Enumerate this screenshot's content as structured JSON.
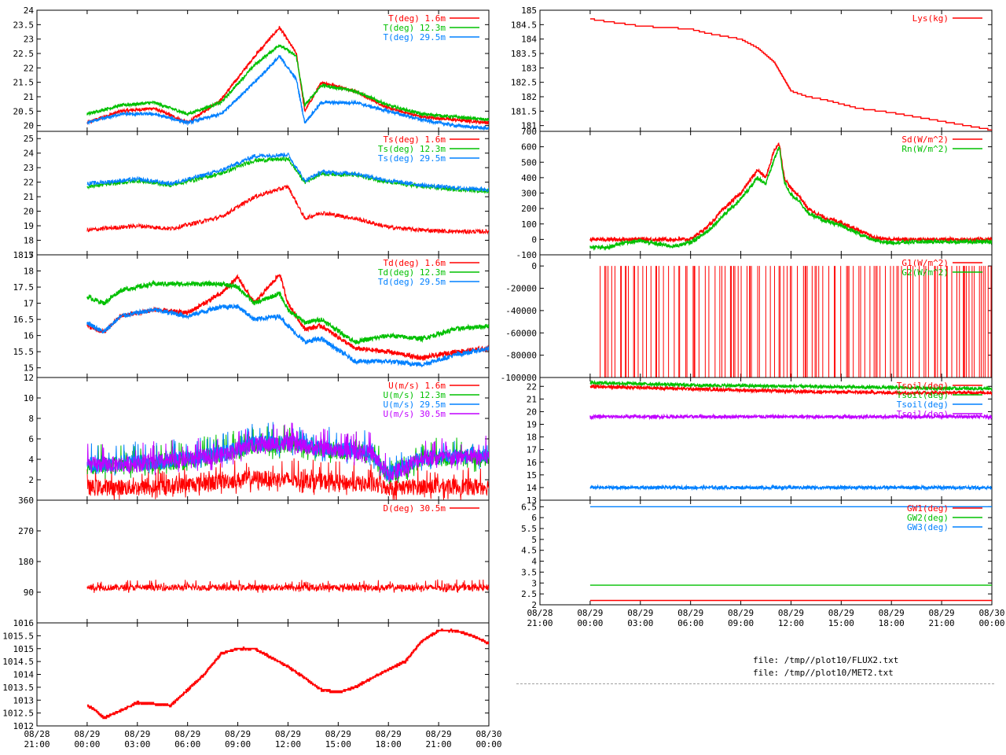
{
  "colors": {
    "red": "#ff0000",
    "green": "#00c000",
    "blue": "#0080ff",
    "purple": "#c000ff",
    "frame": "#000000"
  },
  "x_axis": {
    "tick_labels": [
      {
        "date": "08/28",
        "time": "21:00"
      },
      {
        "date": "08/29",
        "time": "00:00"
      },
      {
        "date": "08/29",
        "time": "03:00"
      },
      {
        "date": "08/29",
        "time": "06:00"
      },
      {
        "date": "08/29",
        "time": "09:00"
      },
      {
        "date": "08/29",
        "time": "12:00"
      },
      {
        "date": "08/29",
        "time": "15:00"
      },
      {
        "date": "08/29",
        "time": "18:00"
      },
      {
        "date": "08/29",
        "time": "21:00"
      },
      {
        "date": "08/30",
        "time": "00:00"
      }
    ],
    "hour_range": [
      -3,
      24
    ]
  },
  "files": [
    "file: /tmp//plot10/FLUX2.txt",
    "file: /tmp//plot10/MET2.txt"
  ],
  "chart_data": [
    {
      "id": "air-temperature",
      "type": "line",
      "ylim": [
        19.8,
        24
      ],
      "yticks": [
        "24",
        "23.5",
        "23",
        "22.5",
        "22",
        "21.5",
        "21",
        "20.5",
        "20"
      ],
      "ytick_values": [
        24,
        23.5,
        23,
        22.5,
        22,
        21.5,
        21,
        20.5,
        20
      ],
      "legend": "top-right",
      "series": [
        {
          "name": "T(deg)  1.6m",
          "color": "red",
          "x": [
            0,
            2,
            4,
            6,
            8,
            10,
            11.5,
            12.5,
            13,
            14,
            16,
            18,
            20,
            22,
            24
          ],
          "y": [
            20.1,
            20.5,
            20.6,
            20.1,
            20.9,
            22.4,
            23.4,
            22.5,
            20.5,
            21.5,
            21.2,
            20.6,
            20.3,
            20.2,
            20.1
          ]
        },
        {
          "name": "T(deg) 12.3m",
          "color": "green",
          "x": [
            0,
            2,
            4,
            6,
            8,
            10,
            11.5,
            12.5,
            13,
            14,
            16,
            18,
            20,
            22,
            24
          ],
          "y": [
            20.4,
            20.7,
            20.8,
            20.4,
            20.8,
            22.1,
            22.8,
            22.4,
            20.7,
            21.4,
            21.2,
            20.7,
            20.4,
            20.3,
            20.2
          ]
        },
        {
          "name": "T(deg) 29.5m",
          "color": "blue",
          "x": [
            0,
            2,
            4,
            6,
            8,
            10,
            11.5,
            12.5,
            13,
            14,
            16,
            18,
            20,
            22,
            24
          ],
          "y": [
            20.1,
            20.4,
            20.4,
            20.1,
            20.4,
            21.5,
            22.4,
            21.6,
            20.1,
            20.8,
            20.8,
            20.5,
            20.2,
            20.0,
            19.9
          ]
        }
      ]
    },
    {
      "id": "surface-temperature",
      "type": "line",
      "ylim": [
        17,
        25.5
      ],
      "yticks": [
        "25",
        "24",
        "23",
        "22",
        "21",
        "20",
        "19",
        "18",
        "17"
      ],
      "ytick_values": [
        25,
        24,
        23,
        22,
        21,
        20,
        19,
        18,
        17
      ],
      "legend": "top-right",
      "series": [
        {
          "name": "Ts(deg)  1.6m",
          "color": "red",
          "x": [
            0,
            3,
            5,
            8,
            10,
            12,
            13,
            14,
            16,
            18,
            20,
            22,
            24
          ],
          "y": [
            18.7,
            19.0,
            18.8,
            19.6,
            21.0,
            21.7,
            19.5,
            19.9,
            19.5,
            18.9,
            18.7,
            18.6,
            18.6
          ]
        },
        {
          "name": "Ts(deg) 12.3m",
          "color": "green",
          "x": [
            0,
            3,
            5,
            8,
            10,
            12,
            13,
            14,
            16,
            18,
            20,
            22,
            24
          ],
          "y": [
            21.7,
            22.1,
            21.8,
            22.6,
            23.5,
            23.6,
            22.0,
            22.6,
            22.5,
            22.0,
            21.7,
            21.5,
            21.4
          ]
        },
        {
          "name": "Ts(deg) 29.5m",
          "color": "blue",
          "x": [
            0,
            3,
            5,
            8,
            10,
            12,
            13,
            14,
            16,
            18,
            20,
            22,
            24
          ],
          "y": [
            21.9,
            22.2,
            21.9,
            22.8,
            23.8,
            23.9,
            22.1,
            22.7,
            22.6,
            22.1,
            21.8,
            21.6,
            21.5
          ]
        }
      ]
    },
    {
      "id": "dewpoint",
      "type": "line",
      "ylim": [
        14.7,
        18.5
      ],
      "yticks": [
        "18.5",
        "18",
        "17.5",
        "17",
        "16.5",
        "16",
        "15.5",
        "15"
      ],
      "ytick_values": [
        18.5,
        18,
        17.5,
        17,
        16.5,
        16,
        15.5,
        15
      ],
      "legend": "top-right",
      "series": [
        {
          "name": "Td(deg)  1.6m",
          "color": "red",
          "x": [
            0,
            1,
            2,
            4,
            6,
            8,
            9,
            10,
            11.5,
            12,
            13,
            14,
            16,
            18,
            20,
            22,
            24
          ],
          "y": [
            16.3,
            16.1,
            16.6,
            16.8,
            16.7,
            17.3,
            17.8,
            17.0,
            17.9,
            17.0,
            16.2,
            16.3,
            15.6,
            15.5,
            15.3,
            15.5,
            15.6
          ]
        },
        {
          "name": "Td(deg) 12.3m",
          "color": "green",
          "x": [
            0,
            1,
            2,
            4,
            6,
            8,
            9,
            10,
            11.5,
            12,
            13,
            14,
            16,
            18,
            20,
            22,
            24
          ],
          "y": [
            17.2,
            17.0,
            17.4,
            17.6,
            17.6,
            17.6,
            17.5,
            17.0,
            17.3,
            16.8,
            16.4,
            16.5,
            15.8,
            16.0,
            15.9,
            16.2,
            16.3
          ]
        },
        {
          "name": "Td(deg) 29.5m",
          "color": "blue",
          "x": [
            0,
            1,
            2,
            4,
            6,
            8,
            9,
            10,
            11.5,
            12,
            13,
            14,
            16,
            18,
            20,
            22,
            24
          ],
          "y": [
            16.4,
            16.1,
            16.6,
            16.8,
            16.6,
            16.9,
            16.9,
            16.5,
            16.6,
            16.3,
            15.8,
            15.9,
            15.2,
            15.2,
            15.1,
            15.4,
            15.6
          ]
        }
      ]
    },
    {
      "id": "wind-speed",
      "type": "line",
      "ylim": [
        0,
        12
      ],
      "yticks": [
        "12",
        "10",
        "8",
        "6",
        "4",
        "2"
      ],
      "ytick_values": [
        12,
        10,
        8,
        6,
        4,
        2
      ],
      "legend": "top-right",
      "series": [
        {
          "name": "U(m/s)  1.6m",
          "color": "red",
          "x": [
            0,
            4,
            8,
            10,
            12,
            14,
            17,
            18,
            20,
            24
          ],
          "y": [
            0.9,
            0.9,
            1.5,
            1.8,
            1.7,
            1.5,
            1.2,
            0.9,
            1.0,
            1.0
          ]
        },
        {
          "name": "U(m/s) 12.3m",
          "color": "green",
          "x": [
            0,
            4,
            8,
            10,
            12,
            14,
            17,
            18,
            20,
            24
          ],
          "y": [
            3.0,
            3.2,
            4.0,
            5.0,
            5.1,
            4.6,
            4.2,
            2.0,
            3.7,
            3.8
          ]
        },
        {
          "name": "U(m/s) 29.5m",
          "color": "blue",
          "x": [
            0,
            4,
            8,
            10,
            12,
            14,
            17,
            18,
            20,
            24
          ],
          "y": [
            3.2,
            3.4,
            4.2,
            5.2,
            5.3,
            4.8,
            4.4,
            2.2,
            3.9,
            4.0
          ]
        },
        {
          "name": "U(m/s) 30.5m",
          "color": "purple",
          "x": [
            0,
            4,
            8,
            10,
            12,
            14,
            17,
            18,
            20,
            24
          ],
          "y": [
            3.1,
            3.3,
            4.1,
            5.1,
            5.2,
            4.7,
            4.3,
            2.1,
            3.8,
            3.9
          ]
        }
      ]
    },
    {
      "id": "wind-direction",
      "type": "line",
      "ylim": [
        0,
        360
      ],
      "yticks": [
        "360",
        "270",
        "180",
        "90"
      ],
      "ytick_values": [
        360,
        270,
        180,
        90
      ],
      "legend": "top-right",
      "series": [
        {
          "name": "D(deg)  30.5m",
          "color": "red",
          "x": [
            0,
            6,
            12,
            18,
            24
          ],
          "y": [
            100,
            100,
            100,
            100,
            100
          ]
        }
      ]
    },
    {
      "id": "pressure",
      "type": "line",
      "ylim": [
        1012,
        1016
      ],
      "yticks": [
        "1016",
        "1015.5",
        "1015",
        "1014.5",
        "1014",
        "1013.5",
        "1013",
        "1012.5",
        "1012"
      ],
      "ytick_values": [
        1016,
        1015.5,
        1015,
        1014.5,
        1014,
        1013.5,
        1013,
        1012.5,
        1012
      ],
      "legend": "none",
      "series": [
        {
          "name": "",
          "color": "red",
          "x": [
            0,
            0.5,
            1,
            2,
            3,
            5,
            7,
            8,
            9,
            10,
            12,
            14,
            15,
            16,
            18,
            19,
            20,
            21,
            22,
            23,
            24
          ],
          "y": [
            1012.8,
            1012.6,
            1012.3,
            1012.6,
            1012.9,
            1012.8,
            1014.0,
            1014.8,
            1015.0,
            1015.0,
            1014.3,
            1013.4,
            1013.3,
            1013.5,
            1014.2,
            1014.5,
            1015.3,
            1015.7,
            1015.7,
            1015.5,
            1015.2
          ]
        }
      ]
    },
    {
      "id": "lysimeter",
      "type": "line",
      "ylim": [
        180.8,
        185
      ],
      "yticks": [
        "185",
        "184.5",
        "184",
        "183.5",
        "183",
        "182.5",
        "182",
        "181.5",
        "181"
      ],
      "ytick_values": [
        185,
        184.5,
        184,
        183.5,
        183,
        182.5,
        182,
        181.5,
        181
      ],
      "legend": "top-right",
      "series": [
        {
          "name": "Lys(kg)",
          "color": "red",
          "x": [
            0,
            0.5,
            3,
            6,
            7,
            9,
            10,
            11,
            12,
            13,
            14,
            15,
            16,
            18,
            20,
            22,
            24
          ],
          "y": [
            184.7,
            184.65,
            184.45,
            184.35,
            184.2,
            184.0,
            183.7,
            183.2,
            182.2,
            182.0,
            181.9,
            181.75,
            181.6,
            181.45,
            181.25,
            181.05,
            180.85
          ]
        }
      ]
    },
    {
      "id": "radiation",
      "type": "line",
      "ylim": [
        -100,
        700
      ],
      "yticks": [
        "700",
        "600",
        "500",
        "400",
        "300",
        "200",
        "100",
        "0",
        "-100"
      ],
      "ytick_values": [
        700,
        600,
        500,
        400,
        300,
        200,
        100,
        0,
        -100
      ],
      "legend": "top-right",
      "series": [
        {
          "name": "Sd(W/m^2)",
          "color": "red",
          "x": [
            0,
            5,
            6,
            7,
            8,
            9,
            10,
            10.5,
            11,
            11.3,
            11.6,
            12,
            12.5,
            13,
            14,
            15,
            16,
            17,
            18,
            24
          ],
          "y": [
            0,
            0,
            0,
            80,
            200,
            300,
            450,
            400,
            580,
            620,
            400,
            330,
            280,
            200,
            140,
            110,
            60,
            10,
            0,
            0
          ]
        },
        {
          "name": "Rn(W/m^2)",
          "color": "green",
          "x": [
            0,
            1,
            2,
            3,
            4,
            5,
            6,
            7,
            8,
            9,
            10,
            10.5,
            11,
            11.3,
            11.6,
            12,
            12.5,
            13,
            14,
            15,
            16,
            17,
            18,
            20,
            22,
            24
          ],
          "y": [
            -50,
            -55,
            -20,
            -10,
            -30,
            -45,
            -20,
            50,
            160,
            260,
            400,
            360,
            520,
            600,
            370,
            290,
            250,
            170,
            120,
            90,
            40,
            -10,
            -20,
            -15,
            -15,
            -15
          ]
        }
      ]
    },
    {
      "id": "soil-heat-flux",
      "type": "bar",
      "ylim": [
        -100000,
        10000
      ],
      "yticks": [
        "0",
        "-20000",
        "-40000",
        "-60000",
        "-80000",
        "-100000"
      ],
      "ytick_values": [
        0,
        -20000,
        -40000,
        -60000,
        -80000,
        -100000
      ],
      "legend": "top-right",
      "series": [
        {
          "name": "G1(W/m^2)",
          "color": "red",
          "value": -100000
        },
        {
          "name": "G2(W/m^2)",
          "color": "green",
          "value": 0
        }
      ]
    },
    {
      "id": "soil-temperature",
      "type": "line",
      "ylim": [
        13,
        22.7
      ],
      "yticks": [
        "22",
        "21",
        "20",
        "19",
        "18",
        "17",
        "16",
        "15",
        "14",
        "13"
      ],
      "ytick_values": [
        22,
        21,
        20,
        19,
        18,
        17,
        16,
        15,
        14,
        13
      ],
      "legend": "top-right",
      "series": [
        {
          "name": "Tsoil(deg)",
          "color": "red",
          "x": [
            0,
            6,
            12,
            18,
            24
          ],
          "y": [
            22.0,
            21.8,
            21.6,
            21.5,
            21.5
          ]
        },
        {
          "name": "Tsoil(deg)",
          "color": "green",
          "x": [
            0,
            6,
            12,
            18,
            24
          ],
          "y": [
            22.3,
            22.1,
            22.0,
            21.9,
            21.8
          ]
        },
        {
          "name": "Tsoil(deg)",
          "color": "blue",
          "x": [
            0,
            6,
            12,
            18,
            24
          ],
          "y": [
            14.0,
            14.0,
            14.0,
            14.0,
            14.0
          ]
        },
        {
          "name": "Tsoil(deg)",
          "color": "purple",
          "x": [
            0,
            6,
            12,
            18,
            24
          ],
          "y": [
            19.6,
            19.6,
            19.6,
            19.6,
            19.6
          ]
        }
      ]
    },
    {
      "id": "ground-water",
      "type": "line",
      "ylim": [
        2,
        6.8
      ],
      "yticks": [
        "6.5",
        "6",
        "5.5",
        "5",
        "4.5",
        "4",
        "3.5",
        "3",
        "2.5",
        "2"
      ],
      "ytick_values": [
        6.5,
        6,
        5.5,
        5,
        4.5,
        4,
        3.5,
        3,
        2.5,
        2
      ],
      "legend": "top-right",
      "series": [
        {
          "name": "GW1(deg)",
          "color": "red",
          "x": [
            0,
            24
          ],
          "y": [
            2.2,
            2.2
          ]
        },
        {
          "name": "GW2(deg)",
          "color": "green",
          "x": [
            0,
            24
          ],
          "y": [
            2.9,
            2.9
          ]
        },
        {
          "name": "GW3(deg)",
          "color": "blue",
          "x": [
            0,
            24
          ],
          "y": [
            6.5,
            6.5
          ]
        }
      ]
    }
  ]
}
